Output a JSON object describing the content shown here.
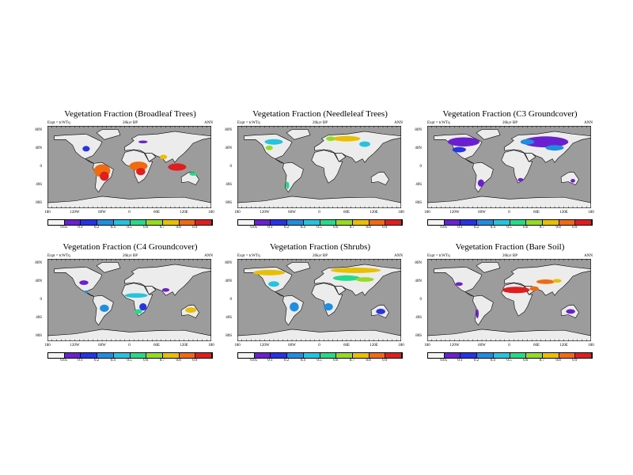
{
  "palette": [
    "#f4f4f4",
    "#6a1fd0",
    "#2434e6",
    "#1e8ee0",
    "#22c4e0",
    "#22dc8a",
    "#96dc1e",
    "#e8c000",
    "#f06a10",
    "#e01e1e"
  ],
  "colors": {
    "ocean": "#9c9c9c",
    "land": "#ececec"
  },
  "colorbar_labels": [
    "0.05",
    "0.1",
    "0.2",
    "0.4",
    "0.5",
    "0.6",
    "0.7",
    "0.8",
    "0.9"
  ],
  "x_ticks": [
    "180",
    "120W",
    "60W",
    "0",
    "60E",
    "120E",
    "180"
  ],
  "y_ticks": [
    "80N",
    "40N",
    "0",
    "40S",
    "80S"
  ],
  "panels": [
    {
      "title": "Vegetation Fraction (Broadleaf Trees)",
      "left": "Expt = tcWTq",
      "center": "26kyr BP",
      "right": "ANN"
    },
    {
      "title": "Vegetation Fraction (Needleleaf Trees)",
      "left": "Expt = tcWTq",
      "center": "26kyr BP",
      "right": "ANN"
    },
    {
      "title": "Vegetation Fraction (C3 Groundcover)",
      "left": "Expt = tcWTq",
      "center": "26kyr BP",
      "right": "ANN"
    },
    {
      "title": "Vegetation Fraction (C4 Groundcover)",
      "left": "Expt = tcWTq",
      "center": "26kyr BP",
      "right": "ANN"
    },
    {
      "title": "Vegetation Fraction (Shrubs)",
      "left": "Expt = tcWTq",
      "center": "26kyr BP",
      "right": "ANN"
    },
    {
      "title": "Vegetation Fraction (Bare Soil)",
      "left": "Expt = tcWTq",
      "center": "26kyr BP",
      "right": "ANN"
    }
  ]
}
